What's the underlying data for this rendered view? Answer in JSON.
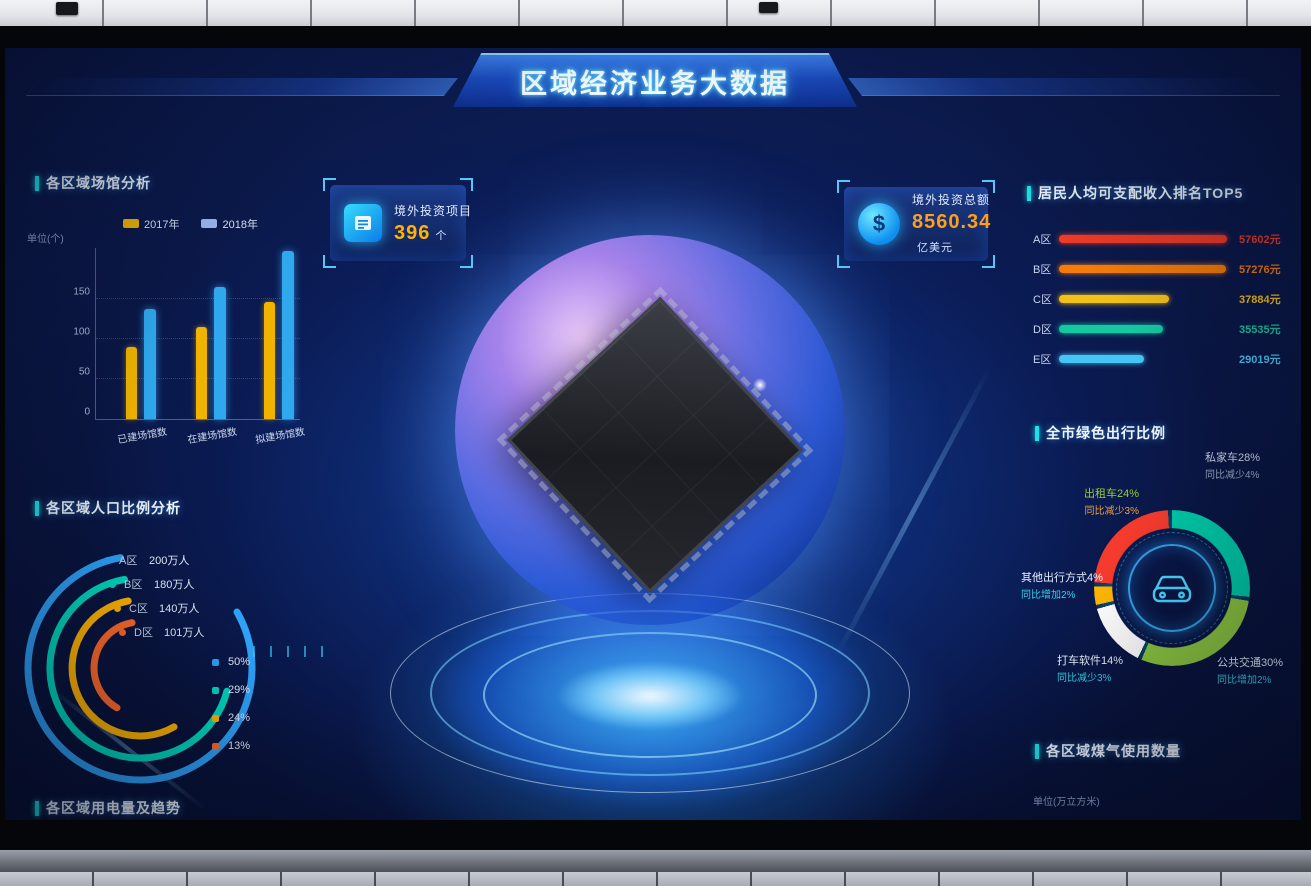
{
  "banner": {
    "title": "区域经济业务大数据"
  },
  "stat_boxes": [
    {
      "icon": "projects-folder-icon",
      "label": "境外投资项目",
      "value": "396",
      "unit": "个"
    },
    {
      "icon": "dollar-coin-icon",
      "label": "境外投资总额",
      "value": "8560.34",
      "unit": "亿美元"
    }
  ],
  "venues": {
    "heading": "各区域场馆分析",
    "unit_label": "单位(个)",
    "legend": [
      {
        "label": "2017年",
        "color": "#f0b400"
      },
      {
        "label": "2018年",
        "color": "#9db8f0"
      }
    ],
    "series_colors": [
      "#f0b400",
      "#2fa8ee"
    ],
    "y_ticks": [
      "150",
      "100",
      "50",
      "0"
    ]
  },
  "population": {
    "heading": "各区域人口比例分析",
    "rings": [
      {
        "label": "A区",
        "value": "200万人",
        "color": "#2ea2f8",
        "radius": 112,
        "sweep": 290
      },
      {
        "label": "B区",
        "value": "180万人",
        "color": "#00d8c0",
        "radius": 90,
        "sweep": 245
      },
      {
        "label": "C区",
        "value": "140万人",
        "color": "#ffb400",
        "radius": 68,
        "sweep": 200
      },
      {
        "label": "D区",
        "value": "101万人",
        "color": "#ff6a2a",
        "radius": 46,
        "sweep": 140
      }
    ],
    "legend": [
      {
        "value": "50%",
        "color": "#2ea2f8"
      },
      {
        "value": "29%",
        "color": "#00d8c0"
      },
      {
        "value": "24%",
        "color": "#ffb400"
      },
      {
        "value": "13%",
        "color": "#ff6a2a"
      }
    ]
  },
  "electricity": {
    "heading": "各区域用电量及趋势"
  },
  "income": {
    "heading": "居民人均可支配收入排名TOP5",
    "rows": [
      {
        "label": "A区",
        "value": 57602,
        "display": "57602元",
        "color": "#f03b28"
      },
      {
        "label": "B区",
        "value": 57276,
        "display": "57276元",
        "color": "#f57c0a"
      },
      {
        "label": "C区",
        "value": 37884,
        "display": "37884元",
        "color": "#f2c118"
      },
      {
        "label": "D区",
        "value": 35535,
        "display": "35535元",
        "color": "#14c9a2"
      },
      {
        "label": "E区",
        "value": 29019,
        "display": "29019元",
        "color": "#45c5f5"
      }
    ]
  },
  "green_travel": {
    "heading": "全市绿色出行比例",
    "segments": [
      {
        "name": "私家车",
        "pct": 28,
        "color": "#00c9a7"
      },
      {
        "name": "公共交通",
        "pct": 30,
        "color": "#8bc53f"
      },
      {
        "name": "打车软件",
        "pct": 14,
        "color": "#ffffff"
      },
      {
        "name": "其他出行方式",
        "pct": 4,
        "color": "#ffb400"
      },
      {
        "name": "出租车",
        "pct": 24,
        "color": "#f43b2d"
      }
    ],
    "labels": {
      "taxi": {
        "line1": "出租车24%",
        "line2": "同比减少3%"
      },
      "private_car": {
        "line1": "私家车28%",
        "line2": "同比减少4%"
      },
      "other": {
        "line1": "其他出行方式4%",
        "line2": "同比增加2%"
      },
      "ride_hailing": {
        "line1": "打车软件14%",
        "line2": "同比减少3%"
      },
      "public_transit": {
        "line1": "公共交通30%",
        "line2": "同比增加2%"
      }
    }
  },
  "gas": {
    "heading": "各区域煤气使用数量",
    "unit_label": "单位(万立方米)"
  },
  "chart_data": [
    {
      "type": "bar",
      "title": "各区域场馆分析",
      "unit": "个",
      "categories": [
        "已建场馆数",
        "在建场馆数",
        "拟建场馆数"
      ],
      "series": [
        {
          "name": "2017年",
          "values": [
            90,
            115,
            146
          ]
        },
        {
          "name": "2018年",
          "values": [
            137,
            165,
            210
          ]
        }
      ],
      "ylim": [
        0,
        215
      ],
      "yticks": [
        0,
        50,
        100,
        150
      ],
      "legend_position": "top"
    },
    {
      "type": "bar",
      "orientation": "horizontal",
      "title": "居民人均可支配收入排名TOP5",
      "categories": [
        "A区",
        "B区",
        "C区",
        "D区",
        "E区"
      ],
      "values": [
        57602,
        57276,
        37884,
        35535,
        29019
      ],
      "unit": "元"
    },
    {
      "type": "pie",
      "variant": "concentric-arcs",
      "title": "各区域人口比例分析",
      "categories": [
        "A区",
        "B区",
        "C区",
        "D区"
      ],
      "value_labels": [
        "200万人",
        "180万人",
        "140万人",
        "101万人"
      ],
      "percentages": [
        50,
        29,
        24,
        13
      ]
    },
    {
      "type": "pie",
      "variant": "donut",
      "title": "全市绿色出行比例",
      "labels": [
        "私家车",
        "公共交通",
        "打车软件",
        "其他出行方式",
        "出租车"
      ],
      "values": [
        28,
        30,
        14,
        4,
        24
      ],
      "yoy": [
        "同比减少4%",
        "同比增加2%",
        "同比减少3%",
        "同比增加2%",
        "同比减少3%"
      ]
    }
  ]
}
